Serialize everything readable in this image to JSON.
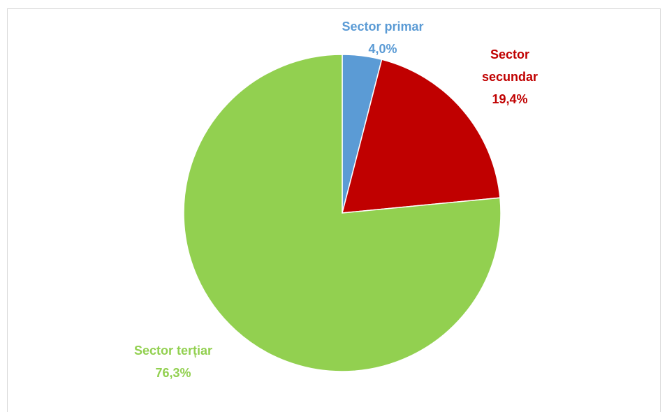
{
  "chart_data": {
    "type": "pie",
    "categories": [
      "Sector primar",
      "Sector secundar",
      "Sector terțiar"
    ],
    "values": [
      4.0,
      19.4,
      76.3
    ],
    "value_labels": [
      "4,0%",
      "19,4%",
      "76,3%"
    ],
    "colors": [
      "#5b9bd5",
      "#c00000",
      "#92d050"
    ]
  }
}
